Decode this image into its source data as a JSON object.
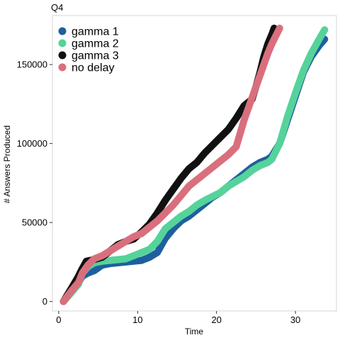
{
  "chart_data": {
    "type": "line",
    "subtitle": "Q4",
    "xlabel": "Time",
    "ylabel": "# Answers Produced",
    "xlim": [
      -0.8,
      35.2
    ],
    "ylim": [
      -6000,
      181000
    ],
    "x_ticks": [
      0,
      10,
      20,
      30
    ],
    "y_ticks": [
      0,
      50000,
      100000,
      150000
    ],
    "y_tick_labels": [
      "0",
      "50000",
      "100000",
      "150000"
    ],
    "grid": false,
    "legend_position": "top-left",
    "series": [
      {
        "name": "gamma 1",
        "color": "#1f5f9e",
        "x": [
          0.6,
          1.5,
          2.5,
          3.0,
          3.7,
          4.5,
          5.5,
          6.5,
          7.5,
          8.5,
          9.5,
          10.5,
          11.5,
          12.5,
          13.5,
          14.5,
          15.5,
          16.5,
          17.5,
          18.5,
          19.5,
          20.5,
          21.5,
          22.5,
          23.5,
          24.5,
          25.5,
          26.5,
          27.0,
          28.0,
          29.0,
          30.0,
          31.0,
          32.0,
          33.0,
          33.7
        ],
        "y": [
          0,
          6000,
          12000,
          16000,
          18000,
          19500,
          23000,
          24000,
          24500,
          25000,
          25500,
          26000,
          28000,
          31000,
          40000,
          46000,
          51000,
          54000,
          58000,
          62000,
          66000,
          69000,
          73000,
          77000,
          81000,
          85000,
          88000,
          90000,
          92000,
          100000,
          115000,
          130000,
          145000,
          155000,
          162000,
          166000
        ]
      },
      {
        "name": "gamma 2",
        "color": "#55d39a",
        "x": [
          0.6,
          1.5,
          2.5,
          3.0,
          3.7,
          4.5,
          5.5,
          6.5,
          7.5,
          8.5,
          9.5,
          10.5,
          11.5,
          12.5,
          13.5,
          14.5,
          15.5,
          16.5,
          17.5,
          18.5,
          19.5,
          20.5,
          21.5,
          22.5,
          23.5,
          24.5,
          25.5,
          26.5,
          27.0,
          28.0,
          29.0,
          30.0,
          31.0,
          32.0,
          33.0,
          33.7
        ],
        "y": [
          0,
          5000,
          11000,
          18000,
          22000,
          24500,
          25500,
          26000,
          26500,
          27000,
          29000,
          31000,
          33000,
          38000,
          46000,
          50000,
          54000,
          57000,
          61000,
          64000,
          66500,
          69000,
          73000,
          76000,
          79000,
          83000,
          86000,
          88000,
          90000,
          100000,
          117000,
          132000,
          146000,
          157000,
          166000,
          172000
        ]
      },
      {
        "name": "gamma 3",
        "color": "#111111",
        "x": [
          0.6,
          1.2,
          1.8,
          2.4,
          2.9,
          3.5,
          4.5,
          5.5,
          6.5,
          7.5,
          8.5,
          9.5,
          10.5,
          11.5,
          12.5,
          13.5,
          14.5,
          15.5,
          16.5,
          17.5,
          18.5,
          19.5,
          20.5,
          21.5,
          22.5,
          23.5,
          24.5,
          25.0,
          25.5,
          26.0,
          26.5,
          27.0,
          27.3
        ],
        "y": [
          0,
          5000,
          10000,
          15000,
          20000,
          25500,
          26500,
          28000,
          32000,
          36000,
          38000,
          39500,
          44000,
          49000,
          56000,
          64000,
          71000,
          78000,
          84000,
          88000,
          94000,
          99000,
          104000,
          109000,
          116000,
          124000,
          128000,
          136000,
          145000,
          155000,
          163000,
          169000,
          173000
        ]
      },
      {
        "name": "no delay",
        "color": "#d96f7d",
        "x": [
          0.6,
          1.5,
          2.5,
          3.0,
          3.7,
          4.5,
          5.5,
          6.5,
          7.5,
          8.5,
          9.5,
          10.5,
          11.5,
          12.5,
          13.5,
          14.5,
          15.5,
          16.5,
          17.5,
          18.5,
          19.5,
          20.5,
          21.5,
          22.5,
          23.5,
          24.5,
          25.0,
          25.5,
          26.0,
          26.5,
          27.0,
          27.5,
          28.0
        ],
        "y": [
          0,
          6000,
          12000,
          18000,
          23000,
          27000,
          29000,
          32000,
          35000,
          38000,
          41000,
          43000,
          47000,
          51000,
          56000,
          61000,
          67000,
          73000,
          77000,
          81000,
          85000,
          89000,
          93000,
          98000,
          115000,
          129000,
          136000,
          143000,
          150000,
          157000,
          163000,
          168000,
          173000
        ]
      }
    ]
  }
}
